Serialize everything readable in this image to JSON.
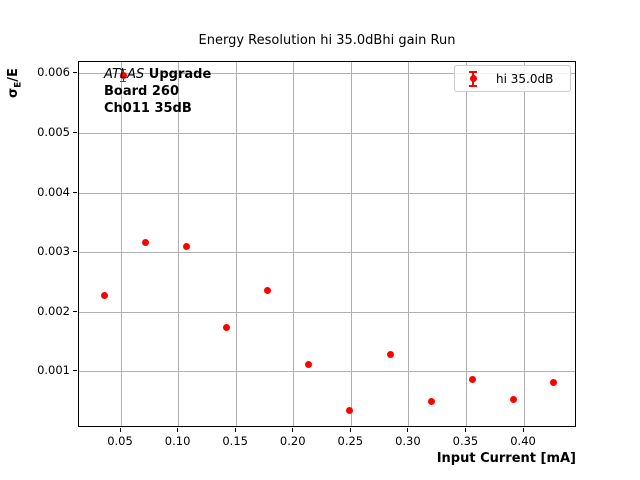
{
  "chart_data": {
    "type": "scatter",
    "style": "errorbar",
    "title": "Energy Resolution hi 35.0dBhi gain Run",
    "xlabel": "Input Current [mA]",
    "ylabel_parts": {
      "sigma": "σ",
      "sub": "E",
      "rest": "/E"
    },
    "xlim": [
      0.0135,
      0.446
    ],
    "ylim": [
      6e-05,
      0.0062
    ],
    "xticks": [
      {
        "v": 0.05,
        "label": "0.05"
      },
      {
        "v": 0.1,
        "label": "0.10"
      },
      {
        "v": 0.15,
        "label": "0.15"
      },
      {
        "v": 0.2,
        "label": "0.20"
      },
      {
        "v": 0.25,
        "label": "0.25"
      },
      {
        "v": 0.3,
        "label": "0.30"
      },
      {
        "v": 0.35,
        "label": "0.35"
      },
      {
        "v": 0.4,
        "label": "0.40"
      }
    ],
    "yticks": [
      {
        "v": 0.001,
        "label": "0.001"
      },
      {
        "v": 0.002,
        "label": "0.002"
      },
      {
        "v": 0.003,
        "label": "0.003"
      },
      {
        "v": 0.004,
        "label": "0.004"
      },
      {
        "v": 0.005,
        "label": "0.005"
      },
      {
        "v": 0.006,
        "label": "0.006"
      }
    ],
    "grid": true,
    "grid_color": "#b0b0b0",
    "legend": {
      "position": "upper right",
      "entries": [
        {
          "label": "hi 35.0dB",
          "color": "#ff0000",
          "marker": "errorbar-dot"
        }
      ]
    },
    "series": [
      {
        "name": "hi 35.0dB",
        "color": "#ff0000",
        "marker": "circle",
        "marker_size_px": 7,
        "points": [
          {
            "x": 0.0355,
            "y": 0.00229
          },
          {
            "x": 0.052,
            "y": 0.00597,
            "yerr": 0.0001
          },
          {
            "x": 0.071,
            "y": 0.00317
          },
          {
            "x": 0.1065,
            "y": 0.00311
          },
          {
            "x": 0.142,
            "y": 0.00174
          },
          {
            "x": 0.1775,
            "y": 0.00236
          },
          {
            "x": 0.213,
            "y": 0.00113
          },
          {
            "x": 0.2485,
            "y": 0.00035
          },
          {
            "x": 0.284,
            "y": 0.0013
          },
          {
            "x": 0.3195,
            "y": 0.00051
          },
          {
            "x": 0.355,
            "y": 0.00088
          },
          {
            "x": 0.3905,
            "y": 0.00053
          },
          {
            "x": 0.426,
            "y": 0.00082
          }
        ]
      }
    ],
    "annotation": {
      "line1_italic": "ATLAS",
      "line1_bold": " Upgrade",
      "line2": "Board 260",
      "line3": "Ch011 35dB"
    }
  }
}
